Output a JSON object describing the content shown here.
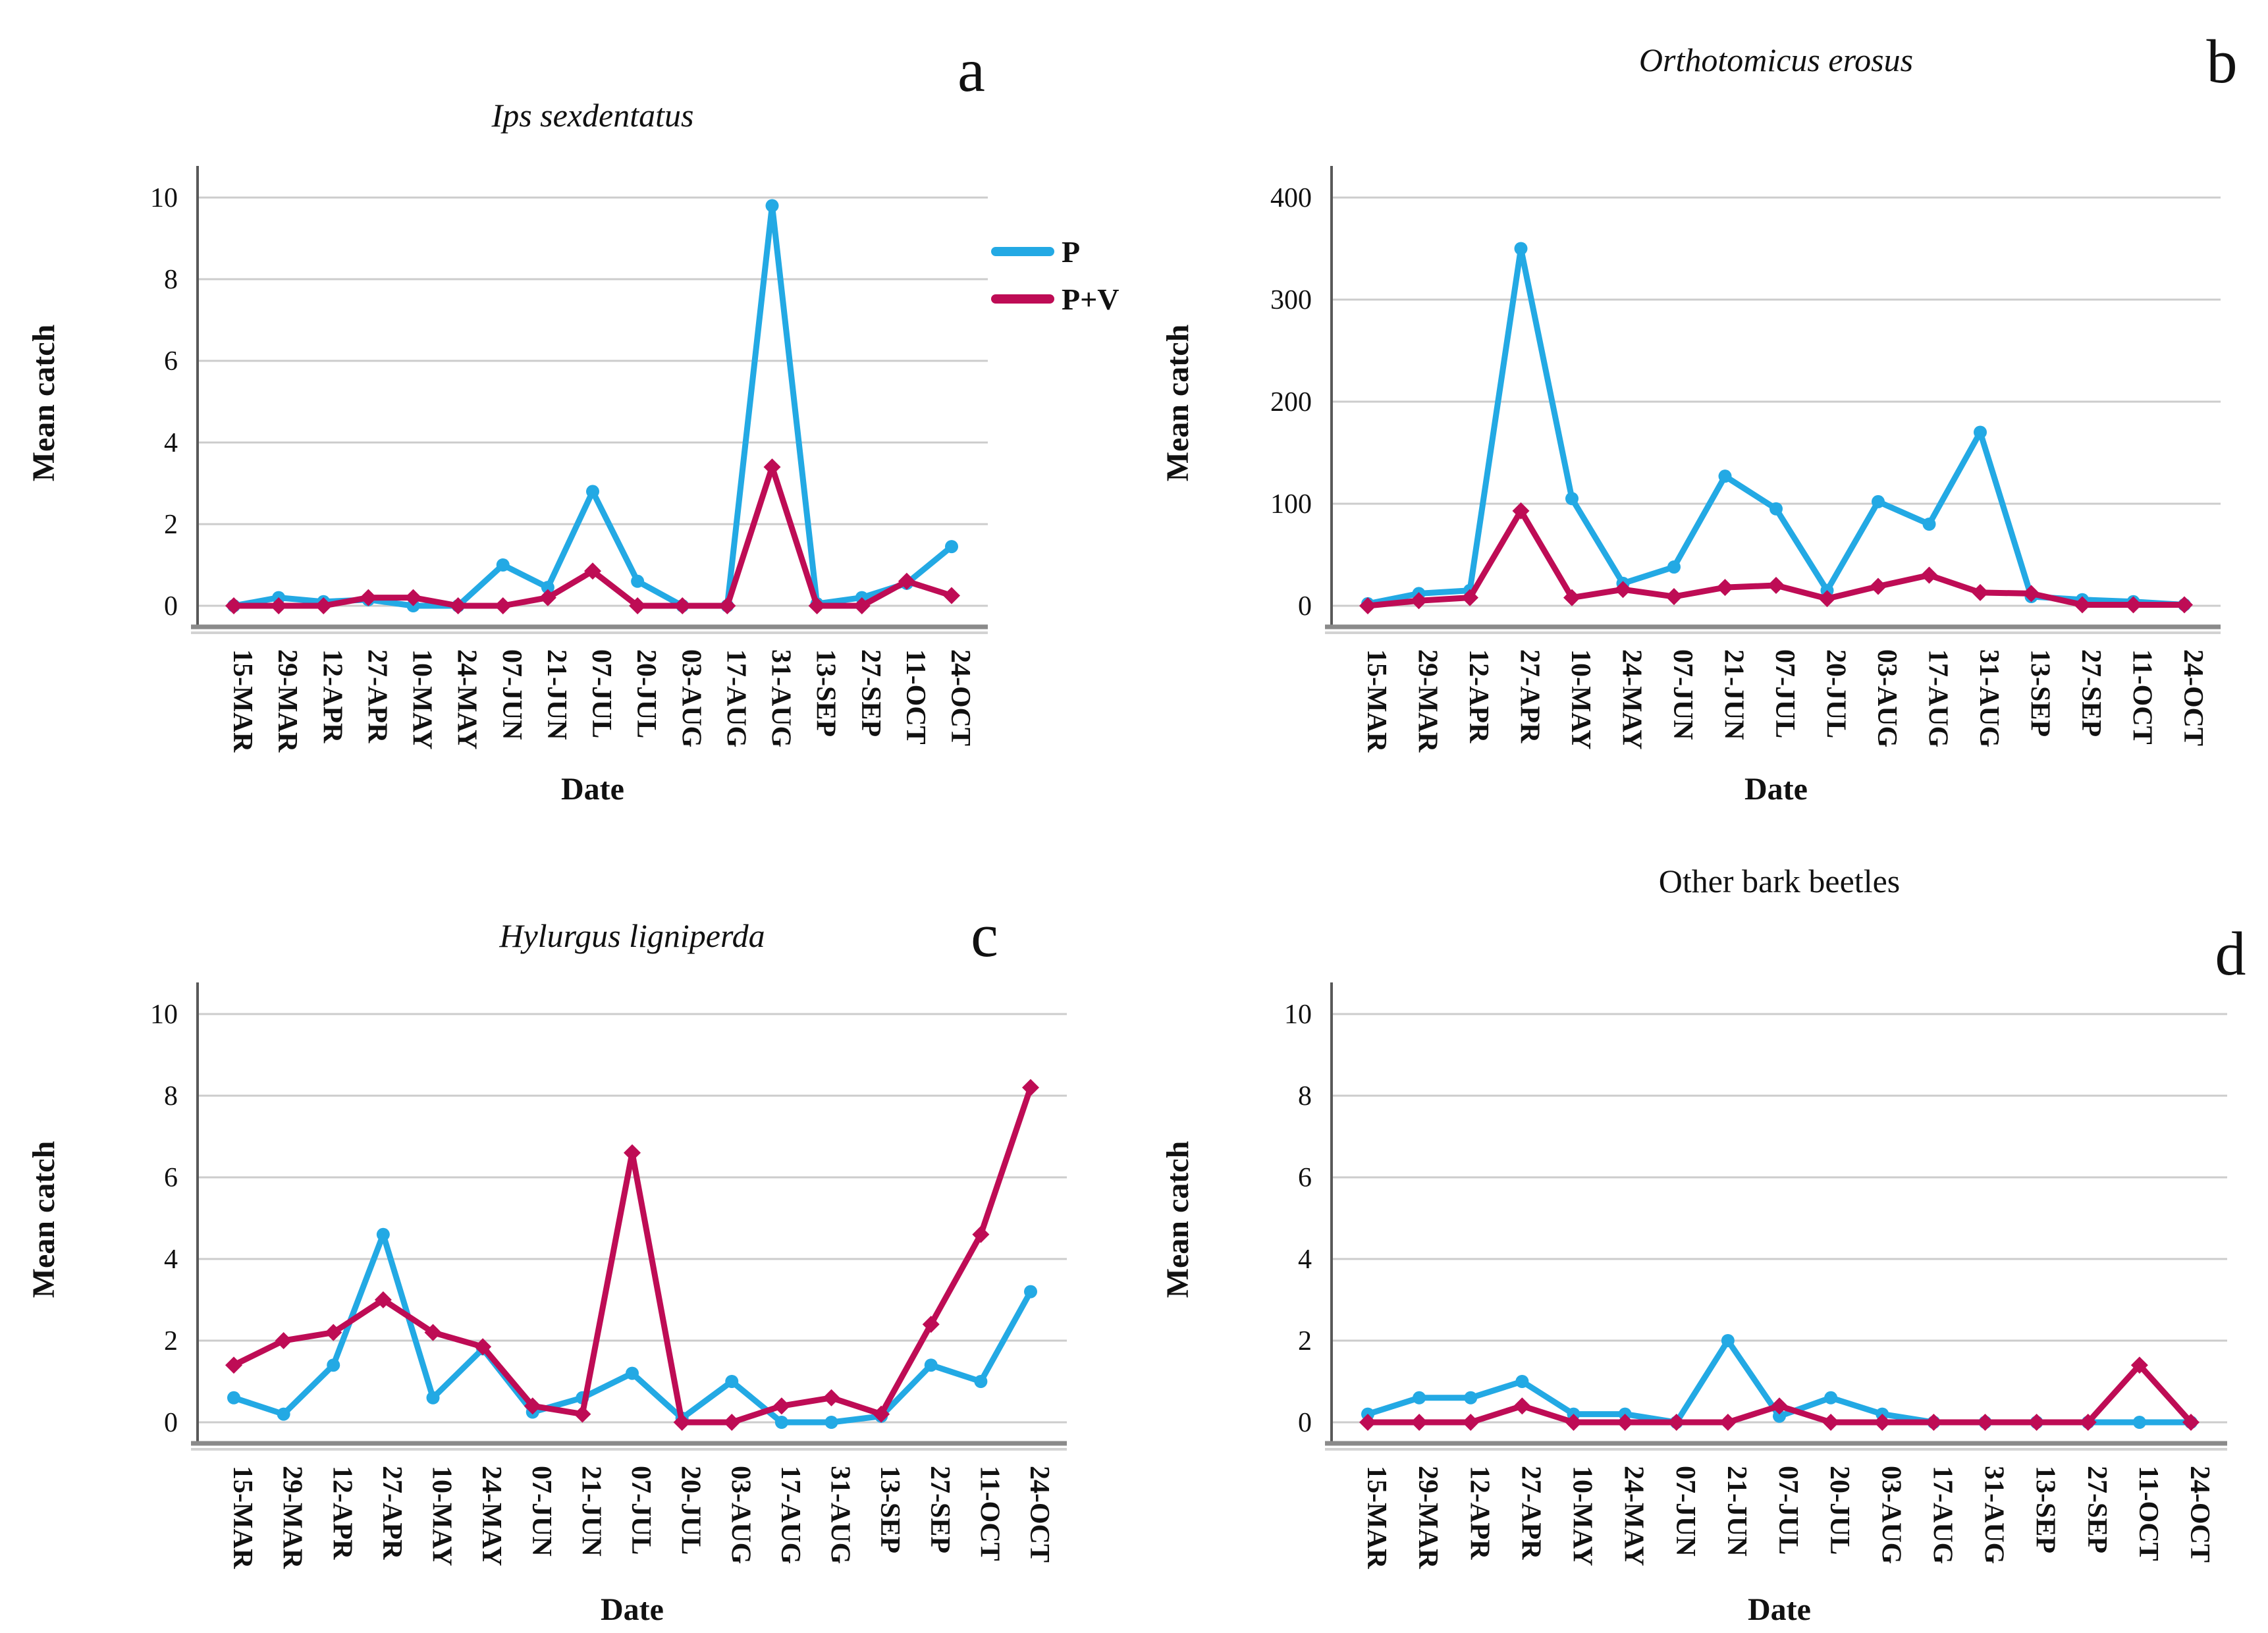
{
  "figure": {
    "ylabel": "Mean catch",
    "xlabel": "Date",
    "colors": {
      "P": "#23A9E4",
      "P+V": "#BE0C55"
    },
    "grid_color": "#CCCCCC",
    "axis_color": "#595959",
    "baseline_color": "#8A8A8A",
    "legend": {
      "position": "right-of-panel-a",
      "entries": [
        {
          "label": "P",
          "color": "#23A9E4"
        },
        {
          "label": "P+V",
          "color": "#BE0C55"
        }
      ]
    }
  },
  "chart_data": [
    {
      "type": "line",
      "panel_letter": "a",
      "title": "Ips sexdentatus",
      "title_italic": true,
      "xlabel": "Date",
      "ylabel": "Mean catch",
      "ylim": [
        0,
        10
      ],
      "yticks": [
        0,
        2,
        4,
        6,
        8,
        10
      ],
      "grid": true,
      "legend_visible": true,
      "categories": [
        "15-MAR",
        "29-MAR",
        "12-APR",
        "27-APR",
        "10-MAY",
        "24-MAY",
        "07-JUN",
        "21-JUN",
        "07-JUL",
        "20-JUL",
        "03-AUG",
        "17-AUG",
        "31-AUG",
        "13-SEP",
        "27-SEP",
        "11-OCT",
        "24-OCT"
      ],
      "series": [
        {
          "name": "P",
          "values": [
            0,
            0.2,
            0.1,
            0.15,
            0,
            0,
            1.0,
            0.45,
            2.8,
            0.6,
            0,
            0,
            9.8,
            0.05,
            0.2,
            0.55,
            1.45
          ]
        },
        {
          "name": "P+V",
          "values": [
            0,
            0,
            0,
            0.2,
            0.2,
            0,
            0,
            0.2,
            0.85,
            0,
            0,
            0,
            3.4,
            0,
            0,
            0.6,
            0.25
          ]
        }
      ]
    },
    {
      "type": "line",
      "panel_letter": "b",
      "title": "Orthotomicus erosus",
      "title_italic": true,
      "xlabel": "Date",
      "ylabel": "Mean catch",
      "ylim": [
        0,
        400
      ],
      "yticks": [
        0,
        100,
        200,
        300,
        400
      ],
      "grid": true,
      "legend_visible": false,
      "categories": [
        "15-MAR",
        "29-MAR",
        "12-APR",
        "27-APR",
        "10-MAY",
        "24-MAY",
        "07-JUN",
        "21-JUN",
        "07-JUL",
        "20-JUL",
        "03-AUG",
        "17-AUG",
        "31-AUG",
        "13-SEP",
        "27-SEP",
        "11-OCT",
        "24-OCT"
      ],
      "series": [
        {
          "name": "P",
          "values": [
            2,
            12,
            15,
            350,
            105,
            22,
            38,
            127,
            95,
            15,
            102,
            80,
            170,
            9,
            6,
            4,
            1
          ]
        },
        {
          "name": "P+V",
          "values": [
            0,
            5,
            8,
            93,
            8,
            16,
            9,
            18,
            20,
            7,
            19,
            30,
            13,
            12,
            1,
            1,
            1
          ]
        }
      ]
    },
    {
      "type": "line",
      "panel_letter": "c",
      "title": "Hylurgus ligniperda",
      "title_italic": true,
      "xlabel": "Date",
      "ylabel": "Mean catch",
      "ylim": [
        0,
        10
      ],
      "yticks": [
        0,
        2,
        4,
        6,
        8,
        10
      ],
      "grid": true,
      "legend_visible": false,
      "categories": [
        "15-MAR",
        "29-MAR",
        "12-APR",
        "27-APR",
        "10-MAY",
        "24-MAY",
        "07-JUN",
        "21-JUN",
        "07-JUL",
        "20-JUL",
        "03-AUG",
        "17-AUG",
        "31-AUG",
        "13-SEP",
        "27-SEP",
        "11-OCT",
        "24-OCT"
      ],
      "series": [
        {
          "name": "P",
          "values": [
            0.6,
            0.2,
            1.4,
            4.6,
            0.6,
            1.8,
            0.25,
            0.6,
            1.2,
            0.1,
            1.0,
            0,
            0,
            0.15,
            1.4,
            1.0,
            3.2
          ]
        },
        {
          "name": "P+V",
          "values": [
            1.4,
            2.0,
            2.2,
            3.0,
            2.2,
            1.85,
            0.4,
            0.2,
            6.6,
            0,
            0,
            0.4,
            0.6,
            0.2,
            2.4,
            4.6,
            8.2
          ]
        }
      ]
    },
    {
      "type": "line",
      "panel_letter": "d",
      "title": "Other bark beetles",
      "title_italic": false,
      "xlabel": "Date",
      "ylabel": "Mean catch",
      "ylim": [
        0,
        10
      ],
      "yticks": [
        0,
        2,
        4,
        6,
        8,
        10
      ],
      "grid": true,
      "legend_visible": false,
      "categories": [
        "15-MAR",
        "29-MAR",
        "12-APR",
        "27-APR",
        "10-MAY",
        "24-MAY",
        "07-JUN",
        "21-JUN",
        "07-JUL",
        "20-JUL",
        "03-AUG",
        "17-AUG",
        "31-AUG",
        "13-SEP",
        "27-SEP",
        "11-OCT",
        "24-OCT"
      ],
      "series": [
        {
          "name": "P",
          "values": [
            0.2,
            0.6,
            0.6,
            1.0,
            0.2,
            0.2,
            0,
            2.0,
            0.15,
            0.6,
            0.2,
            0,
            0,
            0,
            0,
            0,
            0
          ]
        },
        {
          "name": "P+V",
          "values": [
            0,
            0,
            0,
            0.4,
            0,
            0,
            0,
            0,
            0.4,
            0,
            0,
            0,
            0,
            0,
            0,
            1.4,
            0
          ]
        }
      ]
    }
  ]
}
